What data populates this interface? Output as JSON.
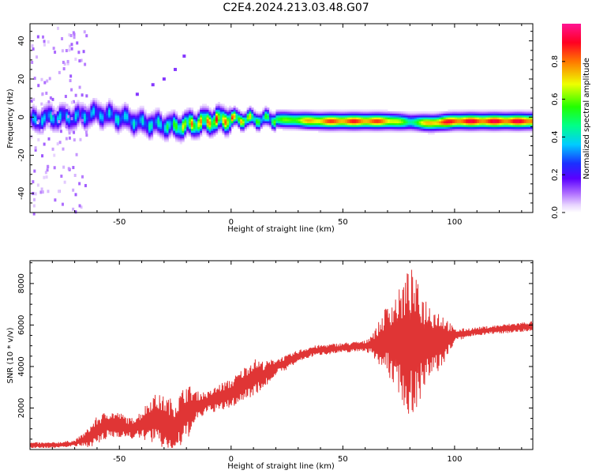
{
  "figure_title": "C2E4.2024.213.03.48.G07",
  "colors": {
    "snr_line": "#e03535",
    "axes": "#000000",
    "background": "#ffffff"
  },
  "chart_data": [
    {
      "type": "heatmap",
      "title": "",
      "xlabel": "Height of straight line (km)",
      "ylabel": "Frequency (Hz)",
      "xlim": [
        -90,
        135
      ],
      "ylim": [
        -50,
        49
      ],
      "xticks": [
        -50,
        0,
        50,
        100
      ],
      "yticks": [
        -40,
        -20,
        0,
        20,
        40
      ],
      "grid": false,
      "colorbar": {
        "label": "Normalized spectral amplitude",
        "range": [
          0.0,
          1.0
        ],
        "ticks": [
          0.0,
          0.2,
          0.4,
          0.6,
          0.8
        ],
        "colormap": "rainbow (white-violet-blue-cyan-green-yellow-red-magenta)"
      },
      "ridge_frequency": {
        "x": [
          -90,
          -80,
          -70,
          -60,
          -50,
          -40,
          -30,
          -25,
          -20,
          -10,
          0,
          10,
          20,
          30,
          40,
          50,
          60,
          70,
          80,
          90,
          100,
          110,
          120,
          135
        ],
        "y": [
          -2,
          0,
          0,
          2,
          0,
          -3,
          -4,
          -5,
          -4,
          -2,
          -1,
          -1,
          -1,
          -1.5,
          -2,
          -2,
          -2,
          -2,
          -2.5,
          -3,
          -2,
          -2,
          -2,
          -2
        ]
      },
      "ridge_amplitude": {
        "x": [
          -90,
          -80,
          -70,
          -60,
          -50,
          -40,
          -30,
          -25,
          -20,
          -10,
          0,
          10,
          20,
          30,
          40,
          50,
          60,
          70,
          80,
          90,
          100,
          110,
          120,
          135
        ],
        "y": [
          0.35,
          0.4,
          0.35,
          0.35,
          0.4,
          0.4,
          0.45,
          0.55,
          0.7,
          0.8,
          0.85,
          0.6,
          0.55,
          0.7,
          0.85,
          0.9,
          0.9,
          0.85,
          0.5,
          0.85,
          0.95,
          0.95,
          0.95,
          0.95
        ]
      },
      "secondary_trace": {
        "x": [
          -42,
          -35,
          -30,
          -25,
          -21
        ],
        "y": [
          12,
          17,
          20,
          25,
          32
        ]
      }
    },
    {
      "type": "line",
      "title": "",
      "xlabel": "Height of straight line (km)",
      "ylabel": "SNR (10 * v/v)",
      "xlim": [
        -90,
        135
      ],
      "ylim": [
        0,
        9100
      ],
      "xticks": [
        -50,
        0,
        50,
        100
      ],
      "yticks": [
        2000,
        4000,
        6000,
        8000
      ],
      "grid": false,
      "series": [
        {
          "x": [
            -90,
            -80,
            -70,
            -65,
            -60,
            -55,
            -50,
            -45,
            -40,
            -35,
            -30,
            -25,
            -20,
            -15,
            -10,
            -5,
            0,
            5,
            10,
            15,
            20,
            25,
            30,
            35,
            40,
            45,
            50,
            55,
            60,
            65,
            70,
            75,
            80,
            85,
            90,
            95,
            100,
            105,
            110,
            115,
            120,
            125,
            130,
            135
          ],
          "y": [
            200,
            200,
            300,
            500,
            900,
            1200,
            1200,
            1000,
            1200,
            1500,
            1300,
            1100,
            1800,
            2100,
            2300,
            2500,
            2700,
            3100,
            3500,
            3600,
            4000,
            4200,
            4500,
            4700,
            4800,
            4850,
            4900,
            4950,
            5000,
            5100,
            5300,
            5200,
            5100,
            5100,
            5200,
            5300,
            5500,
            5600,
            5700,
            5750,
            5800,
            5850,
            5900,
            5950
          ]
        }
      ],
      "oscillation_amplitude": {
        "x": [
          -90,
          -70,
          -65,
          -60,
          -55,
          -50,
          -45,
          -40,
          -35,
          -30,
          -25,
          -20,
          -15,
          -10,
          -5,
          0,
          5,
          10,
          20,
          30,
          40,
          60,
          65,
          70,
          75,
          80,
          85,
          90,
          95,
          100,
          110,
          135
        ],
        "y": [
          150,
          150,
          400,
          700,
          700,
          600,
          500,
          700,
          1200,
          1300,
          1300,
          1400,
          700,
          500,
          700,
          700,
          800,
          900,
          400,
          300,
          250,
          250,
          800,
          1800,
          2500,
          3800,
          2600,
          1800,
          1300,
          300,
          200,
          250
        ]
      }
    }
  ]
}
